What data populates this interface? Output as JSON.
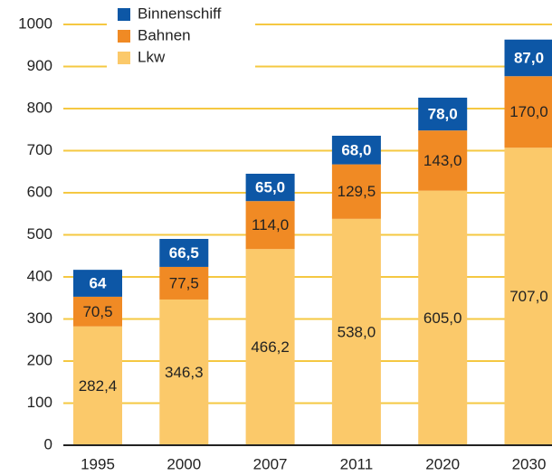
{
  "chart_data": {
    "type": "stacked-bar",
    "categories": [
      "1995",
      "2000",
      "2007",
      "2011",
      "2020",
      "2030"
    ],
    "series": [
      {
        "name": "Lkw",
        "color": "#fbc96a",
        "label_color": "#222222",
        "values": [
          282.4,
          346.3,
          466.2,
          538.0,
          605.0,
          707.0
        ],
        "value_labels": [
          "282,4",
          "346,3",
          "466,2",
          "538,0",
          "605,0",
          "707,0"
        ]
      },
      {
        "name": "Bahnen",
        "color": "#f08a24",
        "label_color": "#222222",
        "values": [
          70.5,
          77.5,
          114.0,
          129.5,
          143.0,
          170.0
        ],
        "value_labels": [
          "70,5",
          "77,5",
          "114,0",
          "129,5",
          "143,0",
          "170,0"
        ]
      },
      {
        "name": "Binnenschiff",
        "color": "#0d57a6",
        "label_color": "#ffffff",
        "values": [
          64,
          66.5,
          65.0,
          68.0,
          78.0,
          87.0
        ],
        "value_labels": [
          "64",
          "66,5",
          "65,0",
          "68,0",
          "78,0",
          "87,0"
        ]
      }
    ],
    "ylim": [
      0,
      1000
    ],
    "yticks": [
      0,
      100,
      200,
      300,
      400,
      500,
      600,
      700,
      800,
      900,
      1000
    ],
    "grid": true,
    "grid_color": "#f5c842",
    "legend": "top-left"
  }
}
